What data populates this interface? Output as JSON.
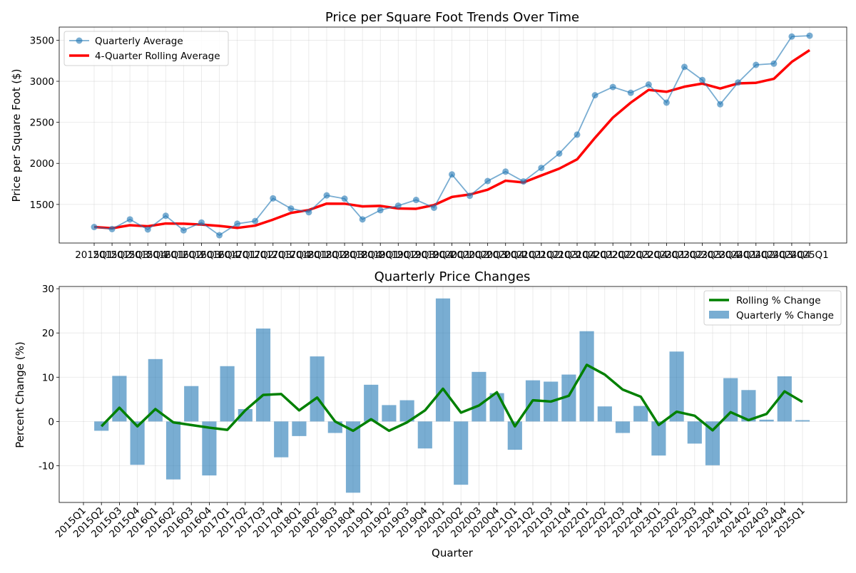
{
  "chart_data": [
    {
      "type": "line",
      "title": "Price per Square Foot Trends Over Time",
      "xlabel": "",
      "ylabel": "Price per Square Foot ($)",
      "ylim": [
        1030,
        3660
      ],
      "yticks": [
        1500,
        2000,
        2500,
        3000,
        3500
      ],
      "grid": true,
      "legend_placement": "top-left",
      "categories": [
        "2015Q1",
        "2015Q2",
        "2015Q3",
        "2015Q4",
        "2016Q1",
        "2016Q2",
        "2016Q3",
        "2016Q4",
        "2017Q1",
        "2017Q2",
        "2017Q3",
        "2017Q4",
        "2018Q1",
        "2018Q2",
        "2018Q3",
        "2018Q4",
        "2019Q1",
        "2019Q2",
        "2019Q3",
        "2019Q4",
        "2020Q1",
        "2020Q2",
        "2020Q3",
        "2020Q4",
        "2021Q1",
        "2021Q2",
        "2021Q3",
        "2021Q4",
        "2022Q1",
        "2022Q2",
        "2022Q3",
        "2022Q4",
        "2023Q1",
        "2023Q2",
        "2023Q3",
        "2023Q4",
        "2024Q1",
        "2024Q2",
        "2024Q3",
        "2024Q4",
        "2025Q1"
      ],
      "series": [
        {
          "name": "Quarterly Average",
          "color": "#1f77b4",
          "values": [
            1225,
            1200,
            1318,
            1195,
            1362,
            1185,
            1280,
            1125,
            1265,
            1298,
            1574,
            1450,
            1405,
            1610,
            1570,
            1318,
            1430,
            1485,
            1555,
            1460,
            1865,
            1605,
            1785,
            1900,
            1780,
            1945,
            2120,
            2350,
            2830,
            2930,
            2860,
            2960,
            2740,
            3175,
            3015,
            2720,
            2985,
            3200,
            3215,
            3545,
            3555
          ]
        },
        {
          "name": "4-Quarter Rolling Average",
          "color": "#ff0000",
          "values": [
            1225,
            1210,
            1247,
            1234,
            1268,
            1265,
            1255,
            1238,
            1214,
            1242,
            1315,
            1397,
            1432,
            1510,
            1509,
            1476,
            1482,
            1451,
            1447,
            1492,
            1591,
            1621,
            1679,
            1789,
            1768,
            1853,
            1936,
            2049,
            2311,
            2557,
            2740,
            2895,
            2872,
            2934,
            2972,
            2912,
            2974,
            2981,
            3030,
            3236,
            3379
          ]
        }
      ]
    },
    {
      "type": "bar",
      "title": "Quarterly Price Changes",
      "xlabel": "Quarter",
      "ylabel": "Percent Change (%)",
      "ylim": [
        -18.3,
        30.5
      ],
      "yticks": [
        -10,
        0,
        10,
        20,
        30
      ],
      "grid": true,
      "legend_placement": "top-right",
      "categories": [
        "2015Q1",
        "2015Q2",
        "2015Q3",
        "2015Q4",
        "2016Q1",
        "2016Q2",
        "2016Q3",
        "2016Q4",
        "2017Q1",
        "2017Q2",
        "2017Q3",
        "2017Q4",
        "2018Q1",
        "2018Q2",
        "2018Q3",
        "2018Q4",
        "2019Q1",
        "2019Q2",
        "2019Q3",
        "2019Q4",
        "2020Q1",
        "2020Q2",
        "2020Q3",
        "2020Q4",
        "2021Q1",
        "2021Q2",
        "2021Q3",
        "2021Q4",
        "2022Q1",
        "2022Q2",
        "2022Q3",
        "2022Q4",
        "2023Q1",
        "2023Q2",
        "2023Q3",
        "2023Q4",
        "2024Q1",
        "2024Q2",
        "2024Q3",
        "2024Q4",
        "2025Q1"
      ],
      "series": [
        {
          "name": "Quarterly % Change",
          "color": "#1f77b4",
          "kind": "bar",
          "values": [
            null,
            -2.1,
            10.3,
            -9.8,
            14.1,
            -13.1,
            8.0,
            -12.2,
            12.5,
            2.8,
            21.0,
            -8.1,
            -3.3,
            14.7,
            -2.6,
            -16.1,
            8.3,
            3.7,
            4.8,
            -6.1,
            27.8,
            -14.3,
            11.2,
            6.4,
            -6.4,
            9.3,
            9.0,
            10.6,
            20.4,
            3.4,
            -2.6,
            3.5,
            -7.7,
            15.8,
            -5.0,
            -9.9,
            9.8,
            7.1,
            0.4,
            10.2,
            0.3
          ]
        },
        {
          "name": "Rolling % Change",
          "color": "#008000",
          "kind": "line",
          "values": [
            null,
            -1.1,
            3.1,
            -1.1,
            2.8,
            -0.2,
            -0.8,
            -1.4,
            -1.9,
            2.5,
            6.0,
            6.2,
            2.5,
            5.4,
            0.0,
            -2.1,
            0.5,
            -2.1,
            -0.2,
            2.5,
            7.4,
            2.0,
            3.6,
            6.6,
            -1.1,
            4.8,
            4.5,
            5.8,
            12.8,
            10.6,
            7.2,
            5.6,
            -0.8,
            2.2,
            1.3,
            -2.0,
            2.1,
            0.3,
            1.7,
            6.8,
            4.4
          ]
        }
      ]
    }
  ]
}
